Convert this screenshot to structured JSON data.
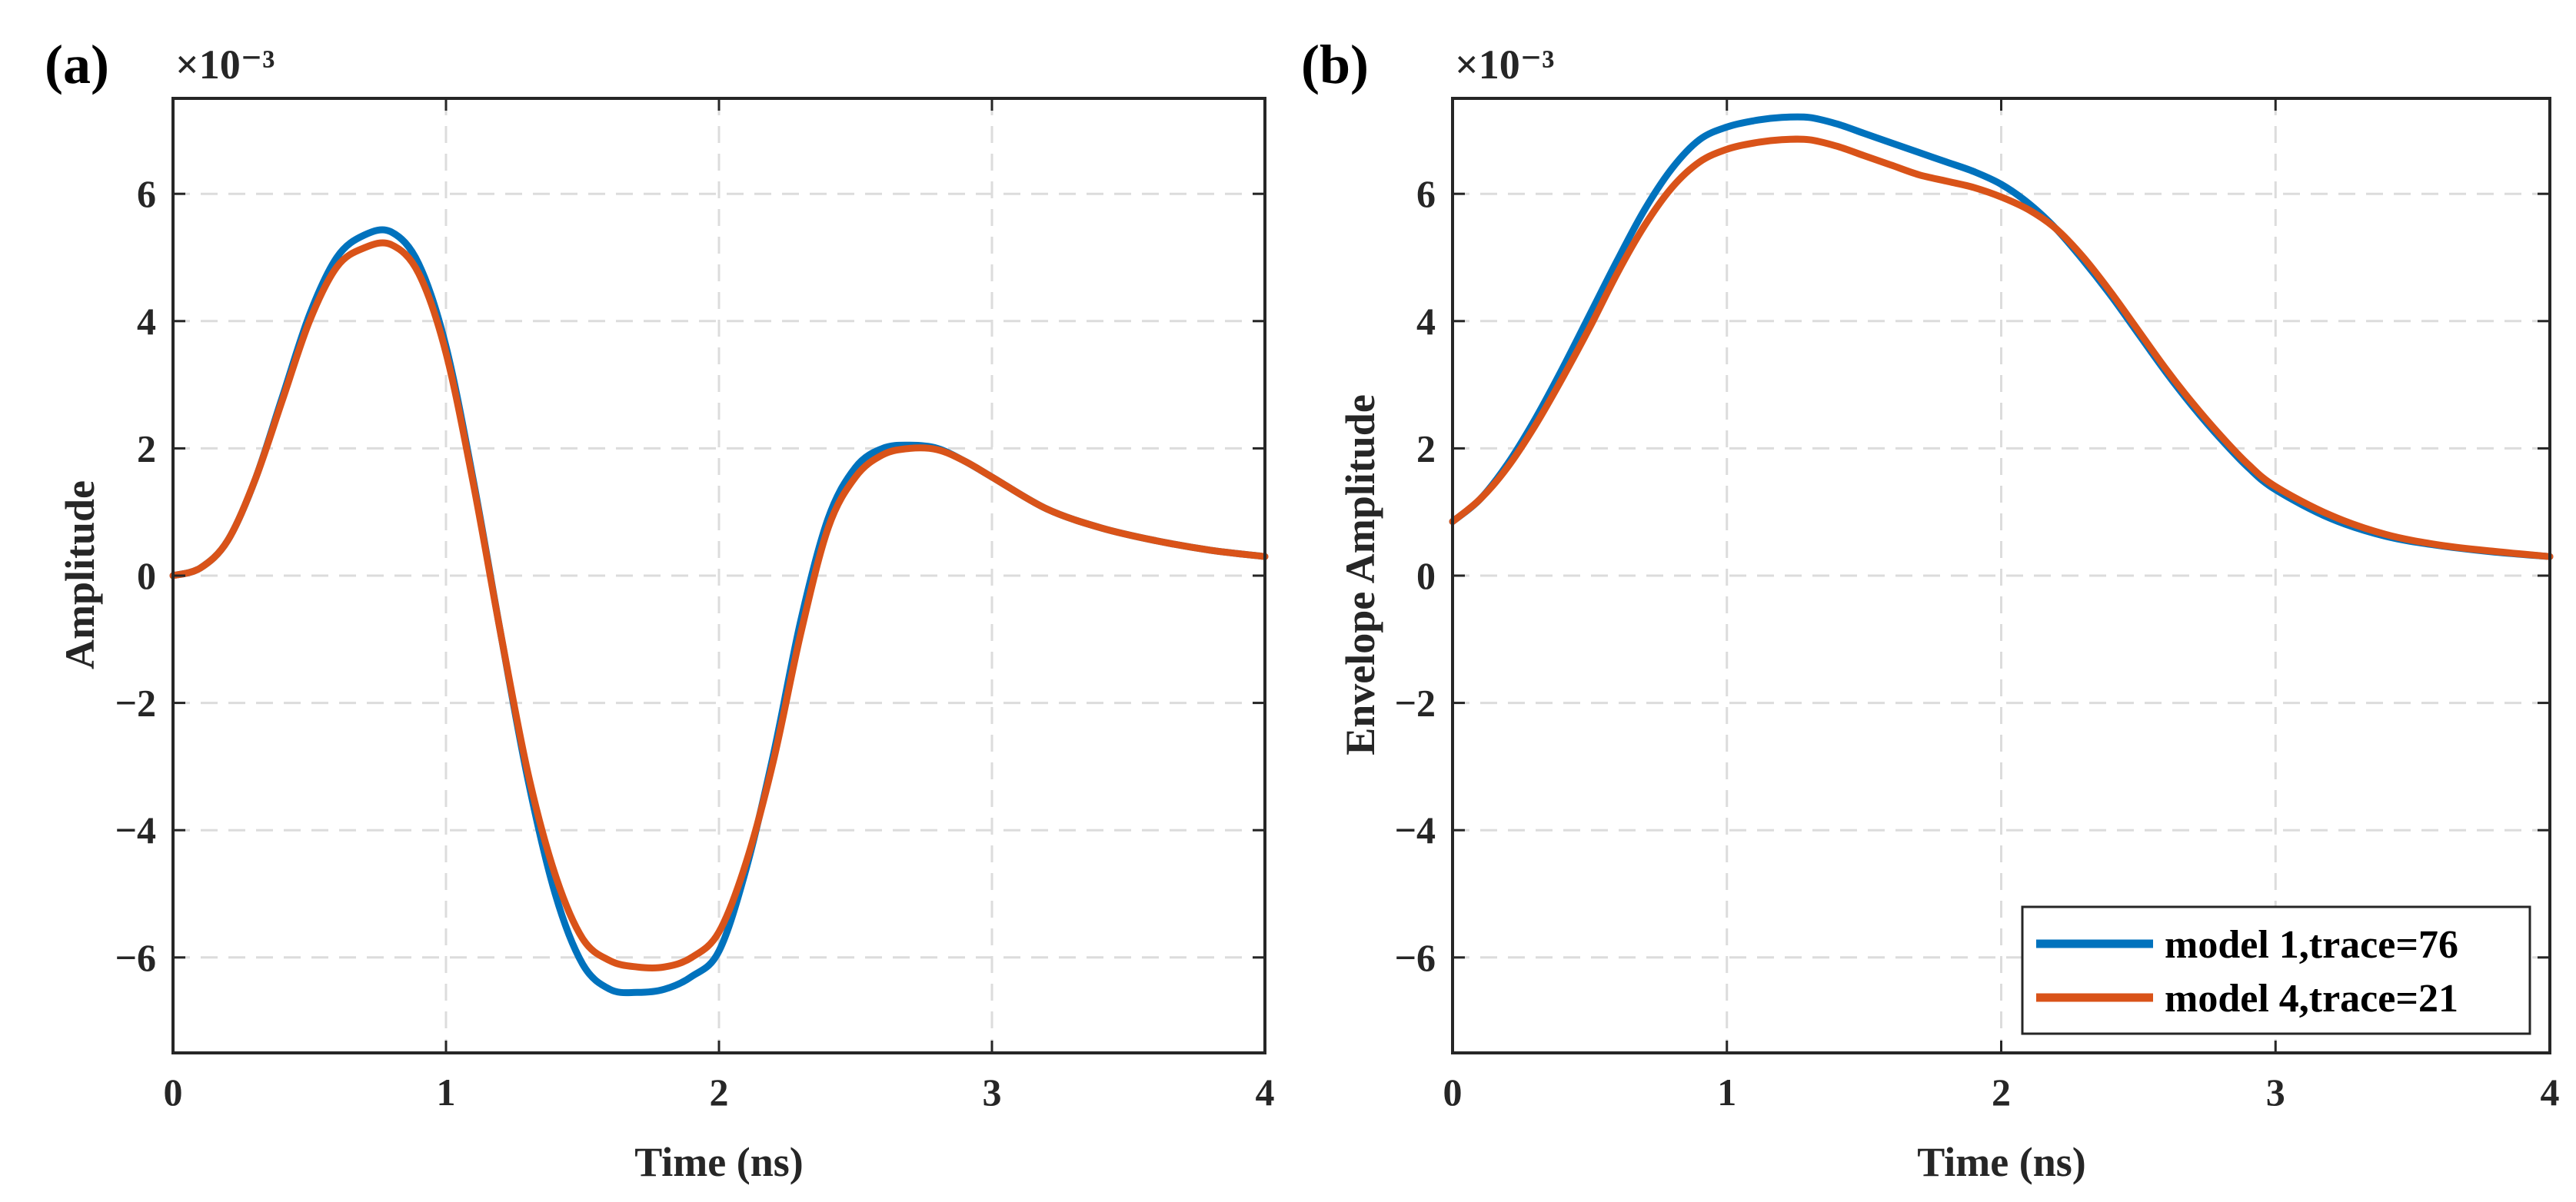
{
  "colors": {
    "series1": "#0072BD",
    "series2": "#D95319",
    "axis": "#262626",
    "grid": "#dcdcdc"
  },
  "chart_data": [
    {
      "panel_label": "(a)",
      "type": "line",
      "title": "",
      "xlabel": "Time (ns)",
      "ylabel": "Amplitude",
      "exponent_label": "×10⁻³",
      "xlim": [
        0,
        4
      ],
      "ylim": [
        -7.5,
        7.5
      ],
      "xticks": [
        0,
        1,
        2,
        3,
        4
      ],
      "xtick_labels": [
        "0",
        "1",
        "2",
        "3",
        "4"
      ],
      "yticks": [
        -6,
        -4,
        -2,
        0,
        2,
        4,
        6
      ],
      "ytick_labels": [
        "−6",
        "−4",
        "−2",
        "0",
        "2",
        "4",
        "6"
      ],
      "grid": true,
      "x": [
        0,
        0.1,
        0.2,
        0.3,
        0.4,
        0.5,
        0.6,
        0.7,
        0.8,
        0.9,
        1.0,
        1.1,
        1.2,
        1.3,
        1.4,
        1.5,
        1.6,
        1.7,
        1.8,
        1.9,
        2.0,
        2.1,
        2.2,
        2.3,
        2.4,
        2.5,
        2.6,
        2.7,
        2.8,
        2.9,
        3.0,
        3.2,
        3.4,
        3.6,
        3.8,
        4.0
      ],
      "series": [
        {
          "name": "model 1,trace=76",
          "values": [
            0,
            0.12,
            0.55,
            1.5,
            2.8,
            4.1,
            5.0,
            5.35,
            5.4,
            4.9,
            3.6,
            1.5,
            -0.9,
            -3.2,
            -5.0,
            -6.1,
            -6.5,
            -6.55,
            -6.5,
            -6.3,
            -5.9,
            -4.6,
            -2.8,
            -0.7,
            0.9,
            1.7,
            2.0,
            2.05,
            2.0,
            1.8,
            1.55,
            1.05,
            0.75,
            0.55,
            0.4,
            0.3
          ]
        },
        {
          "name": "model 4,trace=21",
          "values": [
            0,
            0.12,
            0.55,
            1.5,
            2.75,
            4.0,
            4.85,
            5.15,
            5.2,
            4.75,
            3.5,
            1.45,
            -0.9,
            -3.1,
            -4.7,
            -5.7,
            -6.05,
            -6.15,
            -6.15,
            -6.0,
            -5.6,
            -4.5,
            -2.9,
            -0.9,
            0.75,
            1.55,
            1.9,
            2.0,
            1.98,
            1.8,
            1.55,
            1.05,
            0.75,
            0.55,
            0.4,
            0.3
          ]
        }
      ]
    },
    {
      "panel_label": "(b)",
      "type": "line",
      "title": "",
      "xlabel": "Time (ns)",
      "ylabel": "Envelope Amplitude",
      "exponent_label": "×10⁻³",
      "xlim": [
        0,
        4
      ],
      "ylim": [
        -7.5,
        7.5
      ],
      "xticks": [
        0,
        1,
        2,
        3,
        4
      ],
      "xtick_labels": [
        "0",
        "1",
        "2",
        "3",
        "4"
      ],
      "yticks": [
        -6,
        -4,
        -2,
        0,
        2,
        4,
        6
      ],
      "ytick_labels": [
        "−6",
        "−4",
        "−2",
        "0",
        "2",
        "4",
        "6"
      ],
      "grid": true,
      "legend": {
        "position": "bottom-right",
        "entries": [
          "model 1,trace=76",
          "model 4,trace=21"
        ]
      },
      "x": [
        0,
        0.1,
        0.2,
        0.3,
        0.4,
        0.5,
        0.6,
        0.7,
        0.8,
        0.9,
        1.0,
        1.1,
        1.2,
        1.3,
        1.4,
        1.5,
        1.6,
        1.7,
        1.8,
        1.9,
        2.0,
        2.1,
        2.2,
        2.3,
        2.4,
        2.5,
        2.6,
        2.7,
        2.8,
        2.9,
        3.0,
        3.2,
        3.4,
        3.6,
        3.8,
        4.0
      ],
      "series": [
        {
          "name": "model 1,trace=76",
          "values": [
            0.85,
            1.2,
            1.75,
            2.45,
            3.25,
            4.1,
            4.95,
            5.75,
            6.4,
            6.85,
            7.05,
            7.15,
            7.2,
            7.2,
            7.1,
            6.95,
            6.8,
            6.65,
            6.5,
            6.35,
            6.15,
            5.85,
            5.45,
            4.95,
            4.4,
            3.8,
            3.2,
            2.65,
            2.15,
            1.7,
            1.35,
            0.9,
            0.62,
            0.47,
            0.37,
            0.3
          ]
        },
        {
          "name": "model 4,trace=21",
          "values": [
            0.85,
            1.2,
            1.7,
            2.35,
            3.1,
            3.9,
            4.75,
            5.5,
            6.1,
            6.5,
            6.7,
            6.8,
            6.85,
            6.85,
            6.75,
            6.6,
            6.45,
            6.3,
            6.2,
            6.1,
            5.95,
            5.75,
            5.45,
            5.0,
            4.45,
            3.85,
            3.25,
            2.7,
            2.2,
            1.75,
            1.4,
            0.95,
            0.65,
            0.48,
            0.38,
            0.3
          ]
        }
      ]
    }
  ]
}
